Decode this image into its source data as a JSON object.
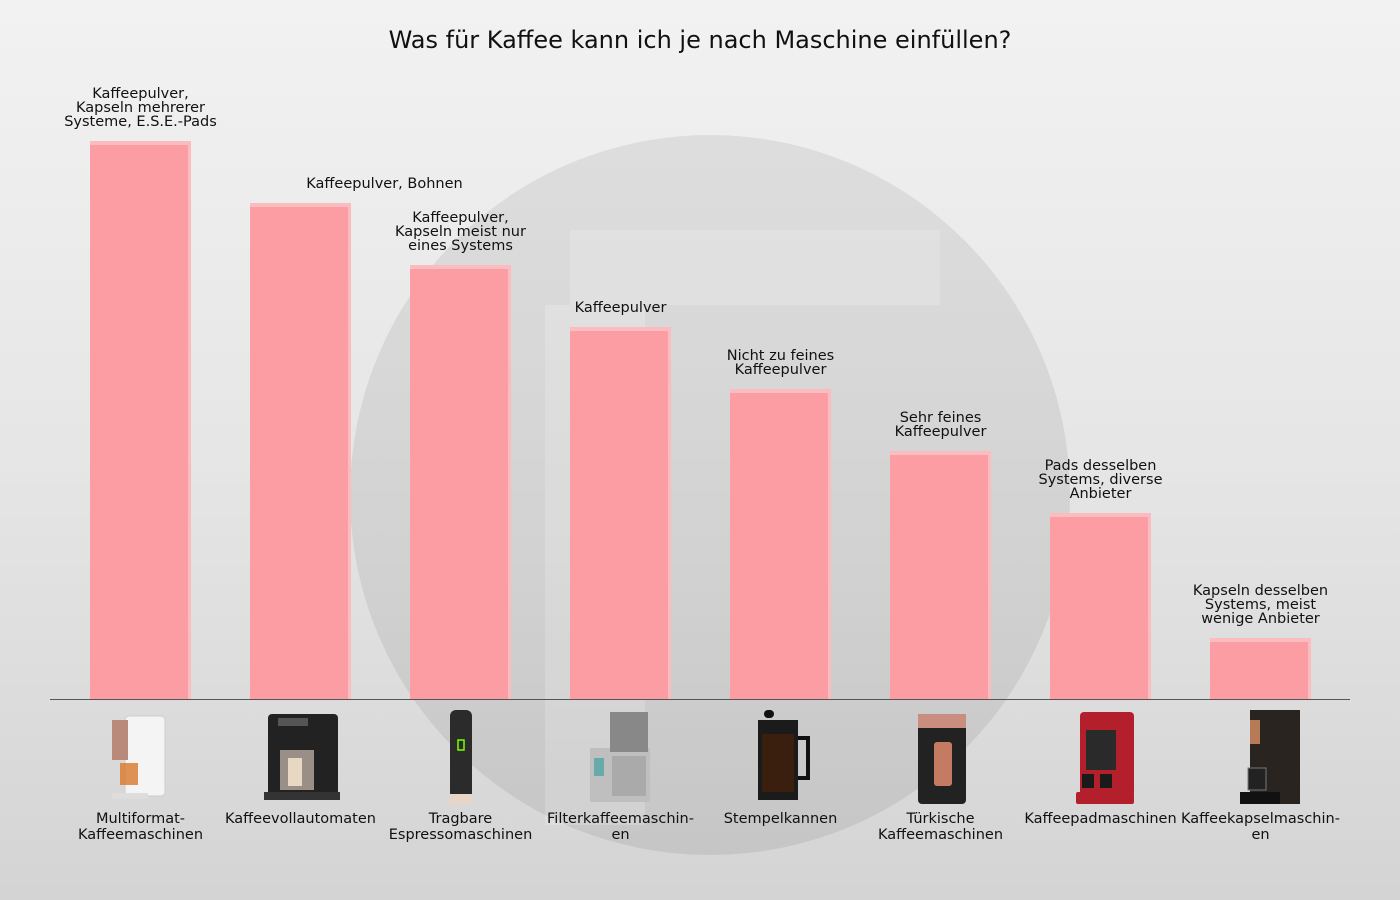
{
  "title": "Was für Kaffee kann ich je nach Maschine einfüllen?",
  "colors": {
    "bar": "#fc9ca3",
    "bar_highlight": "#fbbcc0",
    "axis": "#555555"
  },
  "chart_data": {
    "type": "bar",
    "title": "Was für Kaffee kann ich je nach Maschine einfüllen?",
    "xlabel": "",
    "ylabel": "",
    "grid": false,
    "legend": null,
    "categories": [
      "Multiformat-Kaffeemaschinen",
      "Kaffeevollautomaten",
      "Tragbare Espressomaschinen",
      "Filterkaffeemaschinen",
      "Stempelkannen",
      "Türkische Kaffeemaschinen",
      "Kaffeepadmaschinen",
      "Kaffeekapselmaschinen"
    ],
    "values": [
      8,
      7,
      6,
      5,
      4,
      3,
      2,
      1
    ],
    "ylim": [
      0,
      9
    ],
    "annotations": [
      "Kaffeepulver, Kapseln mehrerer Systeme, E.S.E.-Pads",
      "Kaffeepulver, Bohnen",
      "Kaffeepulver, Kapseln meist nur eines Systems",
      "Kaffeepulver",
      "Nicht zu feines Kaffeepulver",
      "Sehr feines Kaffeepulver",
      "Pads desselben Systems, diverse Anbieter",
      "Kapseln desselben Systems, meist wenige Anbieter"
    ]
  },
  "bars": [
    {
      "label_lines": [
        "Kaffeepulver,",
        "Kapseln mehrerer",
        "Systeme, E.S.E.-Pads"
      ],
      "cat_lines": [
        "Multiformat-",
        "Kaffeemaschinen"
      ],
      "icon": "multiformat-coffee-machine"
    },
    {
      "label_lines": [
        "Kaffeepulver, Bohnen"
      ],
      "cat_lines": [
        "Kaffeevollautomaten"
      ],
      "icon": "fully-automatic-coffee-machine"
    },
    {
      "label_lines": [
        "Kaffeepulver,",
        "Kapseln meist nur",
        "eines Systems"
      ],
      "cat_lines": [
        "Tragbare",
        "Espressomaschinen"
      ],
      "icon": "portable-espresso-maker"
    },
    {
      "label_lines": [
        "Kaffeepulver"
      ],
      "cat_lines": [
        "Filterkaffeemaschin-",
        "en"
      ],
      "icon": "filter-coffee-machine"
    },
    {
      "label_lines": [
        "Nicht zu feines",
        "Kaffeepulver"
      ],
      "cat_lines": [
        "Stempelkannen"
      ],
      "icon": "french-press"
    },
    {
      "label_lines": [
        "Sehr feines",
        "Kaffeepulver"
      ],
      "cat_lines": [
        "Türkische",
        "Kaffeemaschinen"
      ],
      "icon": "turkish-coffee-machine"
    },
    {
      "label_lines": [
        "Pads desselben",
        "Systems, diverse",
        "Anbieter"
      ],
      "cat_lines": [
        "Kaffeepadmaschinen"
      ],
      "icon": "pad-coffee-machine"
    },
    {
      "label_lines": [
        "Kapseln desselben",
        "Systems, meist",
        "wenige Anbieter"
      ],
      "cat_lines": [
        "Kaffeekapselmaschin-",
        "en"
      ],
      "icon": "capsule-coffee-machine"
    }
  ]
}
